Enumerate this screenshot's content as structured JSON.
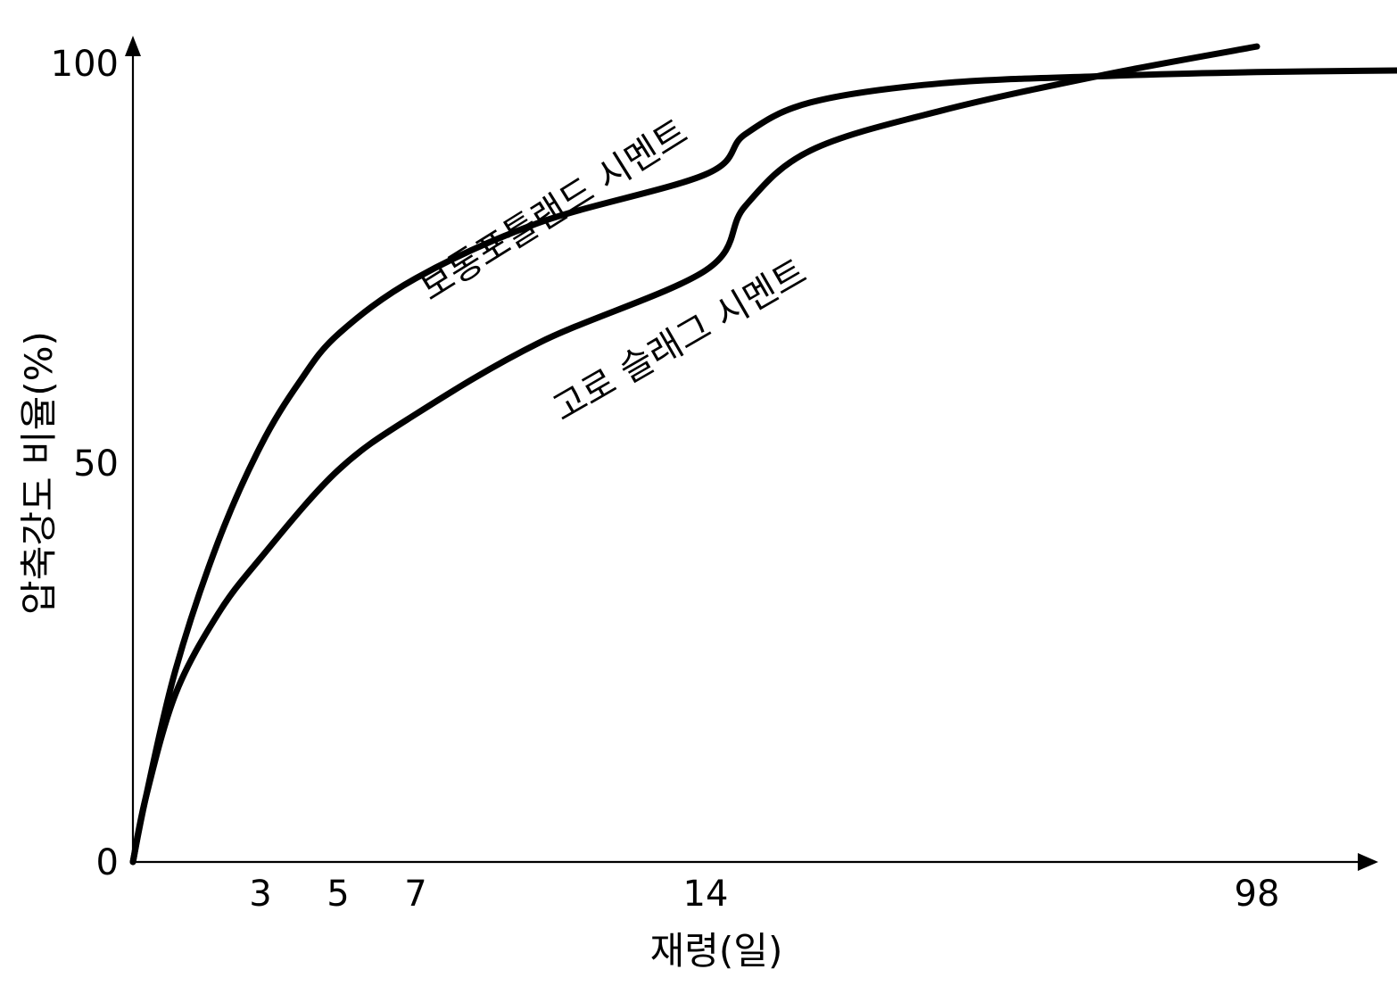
{
  "chart_data": {
    "type": "line",
    "title": "",
    "xlabel": "재령(일)",
    "ylabel": "압축강도 비율(%)",
    "y_ticks": [
      "0",
      "50",
      "100"
    ],
    "x_ticks": [
      "3",
      "5",
      "7",
      "14",
      "98"
    ],
    "series": [
      {
        "name": "보통포틀랜드 시멘트",
        "points": [
          {
            "x": 0,
            "y": 0
          },
          {
            "x": 0.3,
            "y": 8
          },
          {
            "x": 1,
            "y": 24
          },
          {
            "x": 2,
            "y": 40
          },
          {
            "x": 3,
            "y": 52
          },
          {
            "x": 4,
            "y": 60
          },
          {
            "x": 5,
            "y": 66
          },
          {
            "x": 7,
            "y": 73
          },
          {
            "x": 10,
            "y": 80
          },
          {
            "x": 14,
            "y": 86
          },
          {
            "x": 20,
            "y": 91
          },
          {
            "x": 30,
            "y": 95
          },
          {
            "x": 50,
            "y": 97.4
          },
          {
            "x": 75,
            "y": 98.3
          },
          {
            "x": 98,
            "y": 98.8
          },
          {
            "x": 120,
            "y": 99.0
          }
        ]
      },
      {
        "name": "고로 슬래그 시멘트",
        "points": [
          {
            "x": 0,
            "y": 0
          },
          {
            "x": 0.3,
            "y": 8
          },
          {
            "x": 1,
            "y": 21
          },
          {
            "x": 2,
            "y": 31
          },
          {
            "x": 3,
            "y": 38
          },
          {
            "x": 5,
            "y": 49
          },
          {
            "x": 7,
            "y": 56
          },
          {
            "x": 10,
            "y": 65
          },
          {
            "x": 14,
            "y": 74
          },
          {
            "x": 20,
            "y": 82
          },
          {
            "x": 30,
            "y": 89
          },
          {
            "x": 50,
            "y": 94
          },
          {
            "x": 75,
            "y": 98.5
          },
          {
            "x": 98,
            "y": 102
          }
        ]
      }
    ]
  }
}
